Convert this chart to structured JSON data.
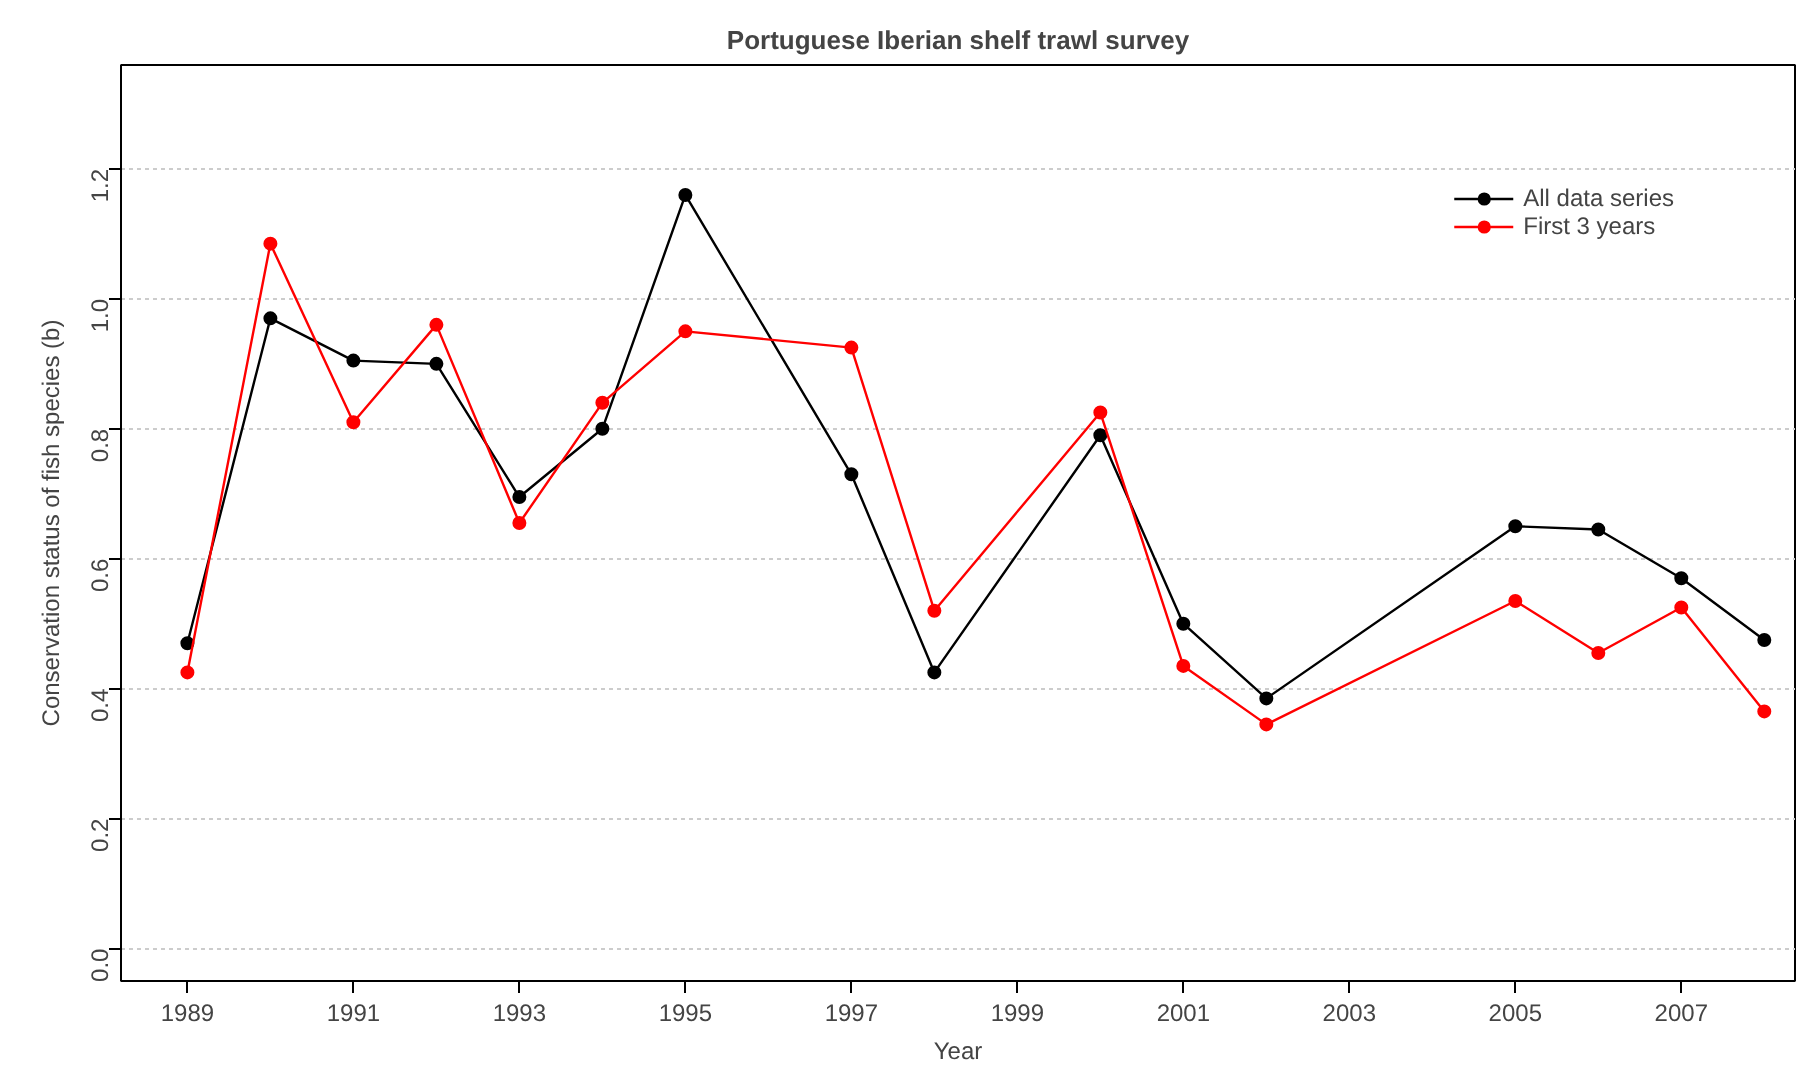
{
  "chart_data": {
    "type": "line",
    "title": "Portuguese Iberian shelf trawl survey",
    "xlabel": "Year",
    "ylabel": "Conservation status of fish species (b)",
    "x": [
      1989,
      1990,
      1991,
      1992,
      1993,
      1994,
      1995,
      1997,
      1998,
      2000,
      2001,
      2002,
      2005,
      2006,
      2007,
      2008
    ],
    "series": [
      {
        "name": "All data series",
        "color": "#000000",
        "values": [
          0.47,
          0.97,
          0.905,
          0.9,
          0.695,
          0.8,
          1.16,
          0.73,
          0.425,
          0.79,
          0.5,
          0.385,
          0.65,
          0.645,
          0.57,
          0.475
        ]
      },
      {
        "name": "First 3 years",
        "color": "#ff0000",
        "values": [
          0.425,
          1.085,
          0.81,
          0.96,
          0.655,
          0.84,
          0.95,
          0.925,
          0.52,
          0.825,
          0.435,
          0.345,
          0.535,
          0.455,
          0.525,
          0.365
        ]
      }
    ],
    "xlim": [
      1988.2,
      2008.37
    ],
    "ylim": [
      -0.05,
      1.36
    ],
    "xticks": [
      1989,
      1991,
      1993,
      1995,
      1997,
      1999,
      2001,
      2003,
      2005,
      2007
    ],
    "yticks": [
      {
        "value": 0,
        "label": "0.0"
      },
      0.2,
      0.4,
      0.6,
      0.8,
      {
        "value": 1,
        "label": "1.0"
      },
      1.2
    ],
    "grid": "y",
    "legend": "top right",
    "marker": "circle",
    "line_style": "solid"
  }
}
